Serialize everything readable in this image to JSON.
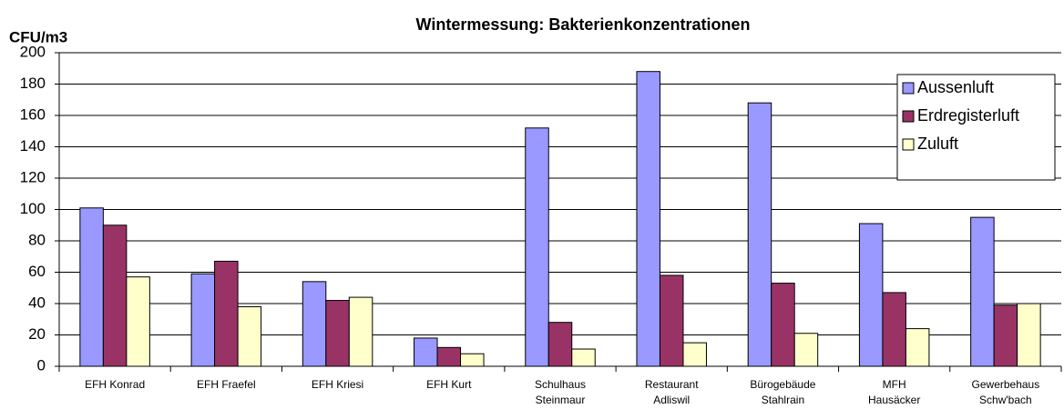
{
  "chart_data": {
    "type": "bar",
    "title": "Wintermessung: Bakterienkonzentrationen",
    "y_label": "CFU/m3",
    "categories": [
      "EFH Konrad",
      "EFH Fraefel",
      "EFH Kriesi",
      "EFH Kurt",
      "Schulhaus\nSteinmaur",
      "Restaurant\nAdliswil",
      "Bürogebäude\nStahlrain",
      "MFH\nHausäcker",
      "Gewerbehaus\nSchw'bach"
    ],
    "series": [
      {
        "name": "Aussenluft",
        "color": "#9999ff",
        "values": [
          101,
          59,
          54,
          18,
          152,
          188,
          168,
          91,
          95
        ]
      },
      {
        "name": "Erdregisterluft",
        "color": "#993366",
        "values": [
          90,
          67,
          42,
          12,
          28,
          58,
          53,
          47,
          39
        ]
      },
      {
        "name": "Zuluft",
        "color": "#ffffcc",
        "values": [
          57,
          38,
          44,
          8,
          11,
          15,
          21,
          24,
          40
        ]
      }
    ],
    "ylim": [
      0,
      200
    ],
    "yticks": [
      0,
      20,
      40,
      60,
      80,
      100,
      120,
      140,
      160,
      180,
      200
    ],
    "grid": true,
    "legend": "top-right"
  }
}
